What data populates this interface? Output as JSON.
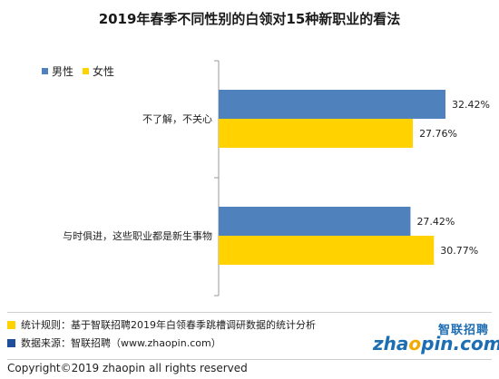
{
  "chart_data": {
    "type": "bar",
    "orientation": "horizontal",
    "title": "2019年春季不同性别的白领对15种新职业的看法",
    "categories": [
      "不了解，不关心",
      "与时俱进，这些职业都是新生事物"
    ],
    "series": [
      {
        "name": "男性",
        "color": "#4f81bd",
        "values": [
          32.42,
          27.42
        ],
        "labels": [
          "32.42%",
          "27.42%"
        ]
      },
      {
        "name": "女性",
        "color": "#ffd200",
        "values": [
          27.76,
          30.77
        ],
        "labels": [
          "27.76%",
          "30.77%"
        ]
      }
    ],
    "xlim": [
      0,
      34
    ],
    "grid": false,
    "legend": "top-left"
  },
  "notes": [
    {
      "text": "统计规则：基于智联招聘2019年白领春季跳槽调研数据的统计分析",
      "color": "#ffd200"
    },
    {
      "text": "数据来源：智联招聘（www.zhaopin.com）",
      "color": "#1f4e9c"
    }
  ],
  "logo": {
    "cn": "智联招聘",
    "en_a": "zha",
    "en_o": "o",
    "en_b": "pin.com"
  },
  "copyright": "Copyright©2019 zhaopin all rights reserved"
}
